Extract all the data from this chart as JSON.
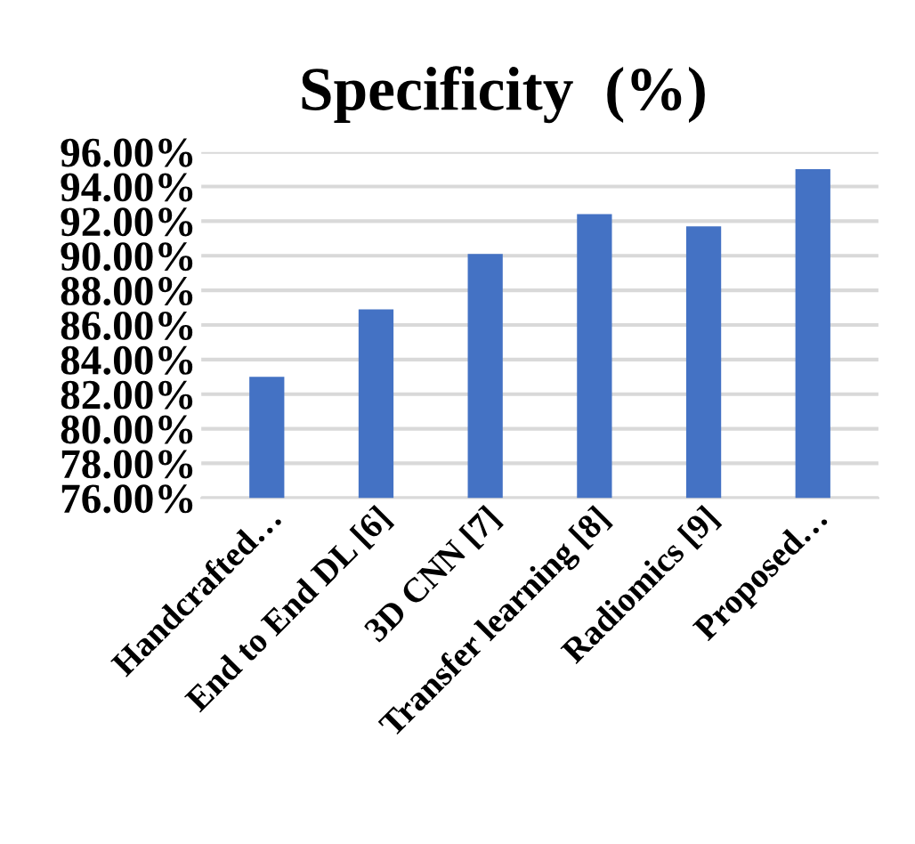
{
  "chart_data": {
    "type": "bar",
    "title": "Specificity  (%)",
    "categories": [
      "Handcrafted…",
      "End to End DL [6]",
      "3D CNN [7]",
      "Transfer learning [8]",
      "Radiomics [9]",
      "Proposed…"
    ],
    "values": [
      83.0,
      86.9,
      90.1,
      92.4,
      91.7,
      95.0
    ],
    "color": "#4472c4",
    "ylim": [
      76,
      96
    ],
    "yticks": [
      {
        "value": 76,
        "label": "76.00%"
      },
      {
        "value": 78,
        "label": "78.00%"
      },
      {
        "value": 80,
        "label": "80.00%"
      },
      {
        "value": 82,
        "label": "82.00%"
      },
      {
        "value": 84,
        "label": "84.00%"
      },
      {
        "value": 86,
        "label": "86.00%"
      },
      {
        "value": 88,
        "label": "88.00%"
      },
      {
        "value": 90,
        "label": "90.00%"
      },
      {
        "value": 92,
        "label": "92.00%"
      },
      {
        "value": 94,
        "label": "94.00%"
      },
      {
        "value": 96,
        "label": "96.00%"
      }
    ],
    "grid": "y"
  }
}
